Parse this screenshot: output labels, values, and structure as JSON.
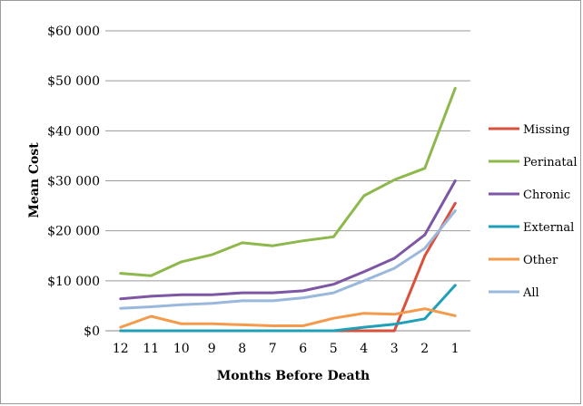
{
  "chart_data": {
    "type": "line",
    "title": "",
    "xlabel": "Months Before Death",
    "ylabel": "Mean Cost",
    "categories": [
      "12",
      "11",
      "10",
      "9",
      "8",
      "7",
      "6",
      "5",
      "4",
      "3",
      "2",
      "1"
    ],
    "ylim": [
      0,
      60000
    ],
    "yticks": [
      0,
      10000,
      20000,
      30000,
      40000,
      50000,
      60000
    ],
    "ytick_labels": [
      "$0",
      "$10 000",
      "$20 000",
      "$30 000",
      "$40 000",
      "$50 000",
      "$60 000"
    ],
    "grid": true,
    "legend_position": "right",
    "series": [
      {
        "name": "Missing",
        "color": "#d9503c",
        "values": [
          0,
          0,
          0,
          0,
          0,
          0,
          0,
          0,
          0,
          0,
          15000,
          25500
        ]
      },
      {
        "name": "Perinatal",
        "color": "#8db84c",
        "values": [
          11500,
          11000,
          13800,
          15200,
          17600,
          17000,
          18000,
          18800,
          27000,
          30200,
          32500,
          48500
        ]
      },
      {
        "name": "Chronic",
        "color": "#7d56a6",
        "values": [
          6400,
          6900,
          7200,
          7200,
          7600,
          7600,
          8000,
          9300,
          11800,
          14500,
          19200,
          30000
        ]
      },
      {
        "name": "External",
        "color": "#1ea0b8",
        "values": [
          0,
          0,
          0,
          0,
          0,
          0,
          0,
          0,
          700,
          1300,
          2400,
          9100
        ]
      },
      {
        "name": "Other",
        "color": "#f59a4a",
        "values": [
          700,
          2900,
          1400,
          1400,
          1200,
          1000,
          1000,
          2500,
          3500,
          3300,
          4400,
          3000
        ]
      },
      {
        "name": "All",
        "color": "#9ab8dc",
        "values": [
          4500,
          4800,
          5200,
          5500,
          6000,
          6000,
          6600,
          7600,
          10000,
          12500,
          16500,
          24000
        ]
      }
    ]
  }
}
